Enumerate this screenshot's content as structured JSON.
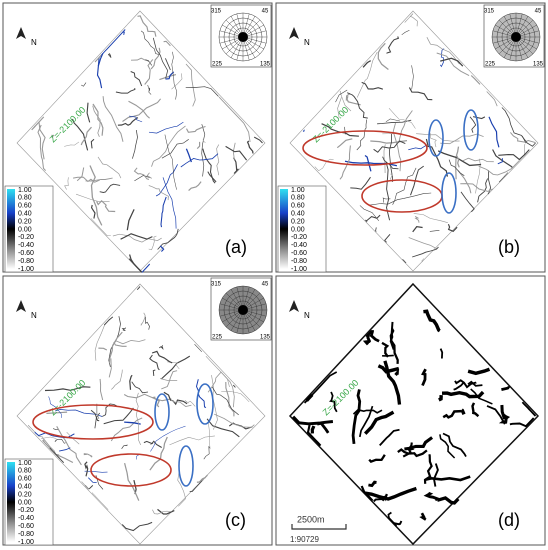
{
  "panel_labels": [
    "(a)",
    "(b)",
    "(c)",
    "(d)"
  ],
  "north_label": "N",
  "z_label": "Z=-2100.00",
  "rose_labels": [
    "315",
    "45",
    "225",
    "135"
  ],
  "colorbar_labels": [
    "1.00",
    "0.80",
    "0.60",
    "0.40",
    "0.20",
    "0.00",
    "-0.20",
    "-0.40",
    "-0.60",
    "-0.80",
    "-1.00"
  ],
  "scale_bar": {
    "length": "2500m",
    "ratio": "1:90729"
  }
}
